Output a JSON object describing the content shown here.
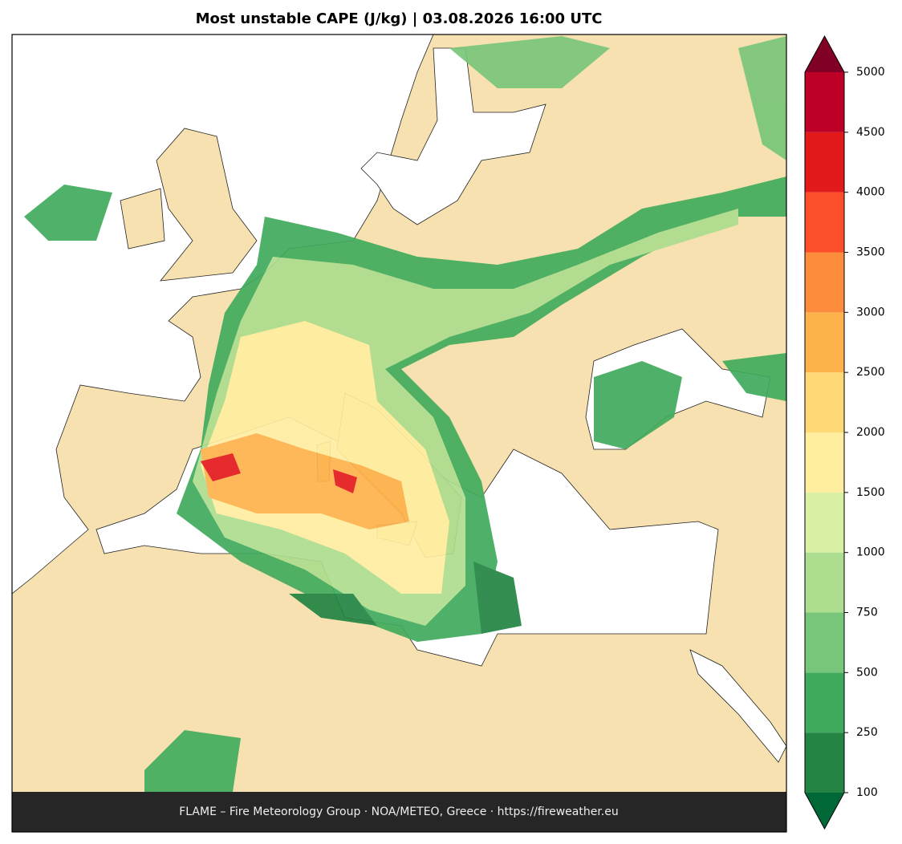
{
  "title": "Most unstable CAPE (J/kg)  |  03.08.2026 16:00 UTC",
  "footer": "FLAME – Fire Meteorology Group · NOA/METEO, Greece · https://fireweather.eu",
  "colorbar": {
    "ticks": [
      100,
      250,
      500,
      750,
      1000,
      1500,
      2000,
      2500,
      3000,
      3500,
      4000,
      4500,
      5000
    ],
    "colors": [
      "#238443",
      "#41ab5d",
      "#78c679",
      "#addd8e",
      "#d9f0a3",
      "#ffeda0",
      "#fed976",
      "#feb24c",
      "#fd8d3c",
      "#fc4e2a",
      "#e31a1c",
      "#bd0026"
    ],
    "under_color": "#006837",
    "over_color": "#800026"
  }
}
